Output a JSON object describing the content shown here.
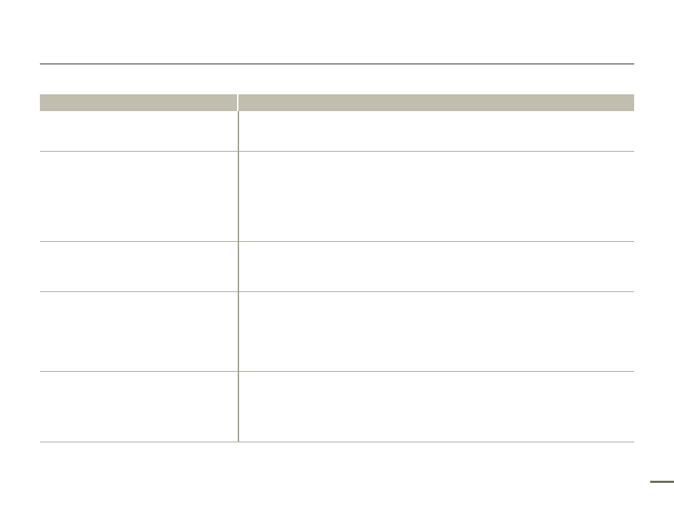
{
  "colors": {
    "header_fill": "#c1beb0",
    "rule": "#a3a291",
    "top_rule": "#1a1a1a",
    "page_bar": "#6b6a58"
  },
  "table": {
    "header": [
      "",
      ""
    ],
    "rows": [
      [
        "",
        ""
      ],
      [
        "",
        ""
      ],
      [
        "",
        ""
      ],
      [
        "",
        ""
      ],
      [
        "",
        ""
      ]
    ]
  }
}
